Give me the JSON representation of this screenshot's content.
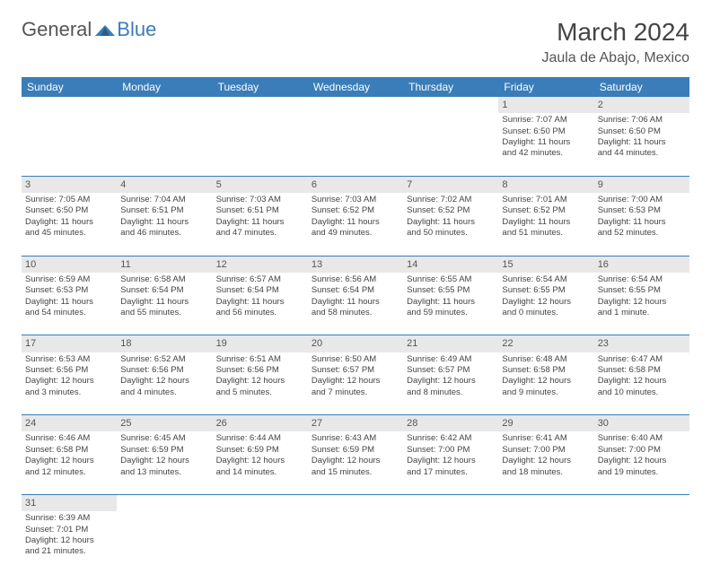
{
  "logo": {
    "text1": "General",
    "text2": "Blue"
  },
  "title": "March 2024",
  "location": "Jaula de Abajo, Mexico",
  "colors": {
    "header_bg": "#3a7db8",
    "header_text": "#ffffff",
    "daynum_bg": "#e8e8e8",
    "text": "#444444",
    "border": "#3a7db8"
  },
  "weekdays": [
    "Sunday",
    "Monday",
    "Tuesday",
    "Wednesday",
    "Thursday",
    "Friday",
    "Saturday"
  ],
  "weeks": [
    [
      null,
      null,
      null,
      null,
      null,
      {
        "n": "1",
        "sr": "Sunrise: 7:07 AM",
        "ss": "Sunset: 6:50 PM",
        "d1": "Daylight: 11 hours",
        "d2": "and 42 minutes."
      },
      {
        "n": "2",
        "sr": "Sunrise: 7:06 AM",
        "ss": "Sunset: 6:50 PM",
        "d1": "Daylight: 11 hours",
        "d2": "and 44 minutes."
      }
    ],
    [
      {
        "n": "3",
        "sr": "Sunrise: 7:05 AM",
        "ss": "Sunset: 6:50 PM",
        "d1": "Daylight: 11 hours",
        "d2": "and 45 minutes."
      },
      {
        "n": "4",
        "sr": "Sunrise: 7:04 AM",
        "ss": "Sunset: 6:51 PM",
        "d1": "Daylight: 11 hours",
        "d2": "and 46 minutes."
      },
      {
        "n": "5",
        "sr": "Sunrise: 7:03 AM",
        "ss": "Sunset: 6:51 PM",
        "d1": "Daylight: 11 hours",
        "d2": "and 47 minutes."
      },
      {
        "n": "6",
        "sr": "Sunrise: 7:03 AM",
        "ss": "Sunset: 6:52 PM",
        "d1": "Daylight: 11 hours",
        "d2": "and 49 minutes."
      },
      {
        "n": "7",
        "sr": "Sunrise: 7:02 AM",
        "ss": "Sunset: 6:52 PM",
        "d1": "Daylight: 11 hours",
        "d2": "and 50 minutes."
      },
      {
        "n": "8",
        "sr": "Sunrise: 7:01 AM",
        "ss": "Sunset: 6:52 PM",
        "d1": "Daylight: 11 hours",
        "d2": "and 51 minutes."
      },
      {
        "n": "9",
        "sr": "Sunrise: 7:00 AM",
        "ss": "Sunset: 6:53 PM",
        "d1": "Daylight: 11 hours",
        "d2": "and 52 minutes."
      }
    ],
    [
      {
        "n": "10",
        "sr": "Sunrise: 6:59 AM",
        "ss": "Sunset: 6:53 PM",
        "d1": "Daylight: 11 hours",
        "d2": "and 54 minutes."
      },
      {
        "n": "11",
        "sr": "Sunrise: 6:58 AM",
        "ss": "Sunset: 6:54 PM",
        "d1": "Daylight: 11 hours",
        "d2": "and 55 minutes."
      },
      {
        "n": "12",
        "sr": "Sunrise: 6:57 AM",
        "ss": "Sunset: 6:54 PM",
        "d1": "Daylight: 11 hours",
        "d2": "and 56 minutes."
      },
      {
        "n": "13",
        "sr": "Sunrise: 6:56 AM",
        "ss": "Sunset: 6:54 PM",
        "d1": "Daylight: 11 hours",
        "d2": "and 58 minutes."
      },
      {
        "n": "14",
        "sr": "Sunrise: 6:55 AM",
        "ss": "Sunset: 6:55 PM",
        "d1": "Daylight: 11 hours",
        "d2": "and 59 minutes."
      },
      {
        "n": "15",
        "sr": "Sunrise: 6:54 AM",
        "ss": "Sunset: 6:55 PM",
        "d1": "Daylight: 12 hours",
        "d2": "and 0 minutes."
      },
      {
        "n": "16",
        "sr": "Sunrise: 6:54 AM",
        "ss": "Sunset: 6:55 PM",
        "d1": "Daylight: 12 hours",
        "d2": "and 1 minute."
      }
    ],
    [
      {
        "n": "17",
        "sr": "Sunrise: 6:53 AM",
        "ss": "Sunset: 6:56 PM",
        "d1": "Daylight: 12 hours",
        "d2": "and 3 minutes."
      },
      {
        "n": "18",
        "sr": "Sunrise: 6:52 AM",
        "ss": "Sunset: 6:56 PM",
        "d1": "Daylight: 12 hours",
        "d2": "and 4 minutes."
      },
      {
        "n": "19",
        "sr": "Sunrise: 6:51 AM",
        "ss": "Sunset: 6:56 PM",
        "d1": "Daylight: 12 hours",
        "d2": "and 5 minutes."
      },
      {
        "n": "20",
        "sr": "Sunrise: 6:50 AM",
        "ss": "Sunset: 6:57 PM",
        "d1": "Daylight: 12 hours",
        "d2": "and 7 minutes."
      },
      {
        "n": "21",
        "sr": "Sunrise: 6:49 AM",
        "ss": "Sunset: 6:57 PM",
        "d1": "Daylight: 12 hours",
        "d2": "and 8 minutes."
      },
      {
        "n": "22",
        "sr": "Sunrise: 6:48 AM",
        "ss": "Sunset: 6:58 PM",
        "d1": "Daylight: 12 hours",
        "d2": "and 9 minutes."
      },
      {
        "n": "23",
        "sr": "Sunrise: 6:47 AM",
        "ss": "Sunset: 6:58 PM",
        "d1": "Daylight: 12 hours",
        "d2": "and 10 minutes."
      }
    ],
    [
      {
        "n": "24",
        "sr": "Sunrise: 6:46 AM",
        "ss": "Sunset: 6:58 PM",
        "d1": "Daylight: 12 hours",
        "d2": "and 12 minutes."
      },
      {
        "n": "25",
        "sr": "Sunrise: 6:45 AM",
        "ss": "Sunset: 6:59 PM",
        "d1": "Daylight: 12 hours",
        "d2": "and 13 minutes."
      },
      {
        "n": "26",
        "sr": "Sunrise: 6:44 AM",
        "ss": "Sunset: 6:59 PM",
        "d1": "Daylight: 12 hours",
        "d2": "and 14 minutes."
      },
      {
        "n": "27",
        "sr": "Sunrise: 6:43 AM",
        "ss": "Sunset: 6:59 PM",
        "d1": "Daylight: 12 hours",
        "d2": "and 15 minutes."
      },
      {
        "n": "28",
        "sr": "Sunrise: 6:42 AM",
        "ss": "Sunset: 7:00 PM",
        "d1": "Daylight: 12 hours",
        "d2": "and 17 minutes."
      },
      {
        "n": "29",
        "sr": "Sunrise: 6:41 AM",
        "ss": "Sunset: 7:00 PM",
        "d1": "Daylight: 12 hours",
        "d2": "and 18 minutes."
      },
      {
        "n": "30",
        "sr": "Sunrise: 6:40 AM",
        "ss": "Sunset: 7:00 PM",
        "d1": "Daylight: 12 hours",
        "d2": "and 19 minutes."
      }
    ],
    [
      {
        "n": "31",
        "sr": "Sunrise: 6:39 AM",
        "ss": "Sunset: 7:01 PM",
        "d1": "Daylight: 12 hours",
        "d2": "and 21 minutes."
      },
      null,
      null,
      null,
      null,
      null,
      null
    ]
  ]
}
